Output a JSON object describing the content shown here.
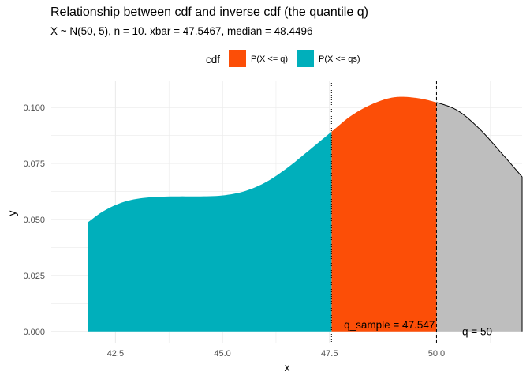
{
  "chart_data": {
    "type": "area",
    "title": "Relationship between cdf and inverse cdf (the quantile q)",
    "subtitle": "X ~ N(50, 5), n = 10. xbar = 47.5467, median = 48.4496",
    "xlabel": "x",
    "ylabel": "y",
    "xlim": [
      41.0,
      52.0
    ],
    "ylim": [
      -0.005,
      0.112
    ],
    "x_ticks": [
      42.5,
      45.0,
      47.5,
      50.0
    ],
    "x_tick_labels": [
      "42.5",
      "45.0",
      "47.5",
      "50.0"
    ],
    "y_ticks": [
      0.0,
      0.025,
      0.05,
      0.075,
      0.1
    ],
    "y_tick_labels": [
      "0.000",
      "0.025",
      "0.050",
      "0.075",
      "0.100"
    ],
    "grid": true,
    "legend_position": "top",
    "legend": {
      "title": "cdf",
      "items": [
        {
          "label": "P(X <= q)",
          "color": "#FC4E07"
        },
        {
          "label": "P(X <= qs)",
          "color": "#00AFBB"
        }
      ]
    },
    "density": {
      "x": [
        41.86,
        42.2,
        42.6,
        43.0,
        43.5,
        44.0,
        44.5,
        45.0,
        45.5,
        46.0,
        46.5,
        47.0,
        47.55,
        48.0,
        48.5,
        49.0,
        49.5,
        50.0,
        50.5,
        51.0,
        51.5,
        52.0
      ],
      "y": [
        0.0488,
        0.0535,
        0.0572,
        0.0592,
        0.0601,
        0.0603,
        0.0603,
        0.0607,
        0.0625,
        0.0665,
        0.0728,
        0.0805,
        0.0892,
        0.0962,
        0.1015,
        0.1045,
        0.1043,
        0.1022,
        0.0985,
        0.0905,
        0.08,
        0.069
      ]
    },
    "q_sample": 47.547,
    "q": 50.0,
    "colors": {
      "sample_fill": "#00AFBB",
      "q_fill": "#FC4E07",
      "rest_fill": "#BEBEBE",
      "curve": "#000000",
      "grid": "#EBEBEB"
    },
    "annotations": [
      {
        "text": "q_sample = 47.547",
        "x": 48.9,
        "y": 0.0
      },
      {
        "text": "q = 50",
        "x": 50.95,
        "y": -0.003
      }
    ]
  }
}
